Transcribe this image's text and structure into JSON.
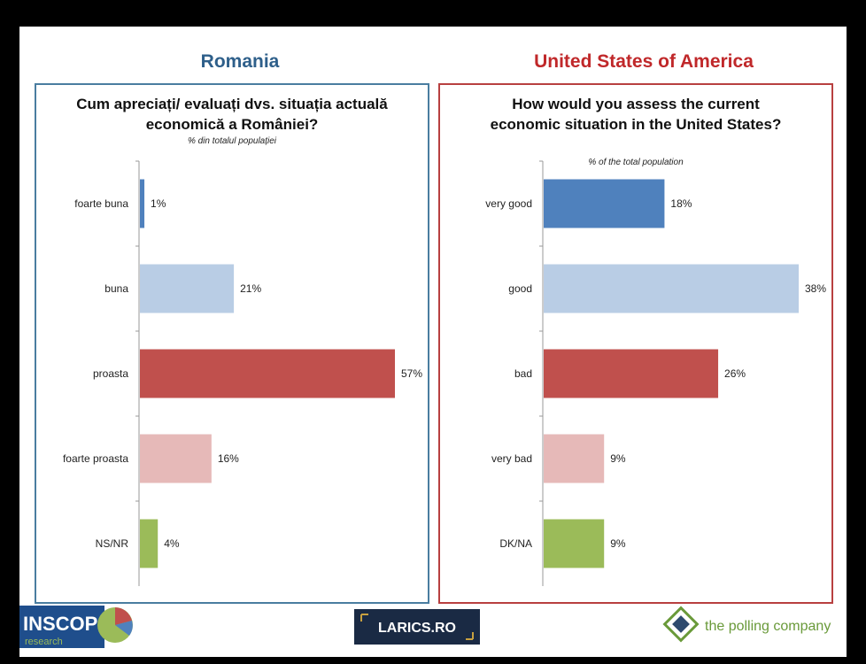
{
  "left": {
    "country": "Romania",
    "country_color": "#2e5f8a",
    "border_color": "#4a7da0",
    "question": "Cum apreciați/ evaluați dvs. situația actuală economică a României?",
    "subtitle": "% din totalul populației"
  },
  "right": {
    "country": "United States of America",
    "country_color": "#c0282a",
    "border_color": "#b84040",
    "question": "How would you assess the current economic situation in the United States?",
    "subtitle": "% of the total population"
  },
  "chart_data": [
    {
      "type": "bar",
      "orientation": "horizontal",
      "title": "Cum apreciați/ evaluați dvs. situația actuală economică a României?",
      "subtitle": "% din totalul populației",
      "categories": [
        "foarte buna",
        "buna",
        "proasta",
        "foarte proasta",
        "NS/NR"
      ],
      "values": [
        1,
        21,
        57,
        16,
        4
      ],
      "labels": [
        "1%",
        "21%",
        "57%",
        "16%",
        "4%"
      ],
      "colors": [
        "#4f81bd",
        "#b9cde5",
        "#c0504d",
        "#e6b9b8",
        "#9bbb59"
      ],
      "xlim": [
        0,
        57
      ]
    },
    {
      "type": "bar",
      "orientation": "horizontal",
      "title": "How would you assess the current economic situation in the United States?",
      "subtitle": "% of the total population",
      "categories": [
        "very good",
        "good",
        "bad",
        "very bad",
        "DK/NA"
      ],
      "values": [
        18,
        38,
        26,
        9,
        9
      ],
      "labels": [
        "18%",
        "38%",
        "26%",
        "9%",
        "9%"
      ],
      "colors": [
        "#4f81bd",
        "#b9cde5",
        "#c0504d",
        "#e6b9b8",
        "#9bbb59"
      ],
      "xlim": [
        0,
        38
      ]
    }
  ],
  "logos": {
    "inscop": "INSCOP",
    "inscop_sub": "research",
    "larics": "LARICS.RO",
    "polling": "the polling company"
  }
}
